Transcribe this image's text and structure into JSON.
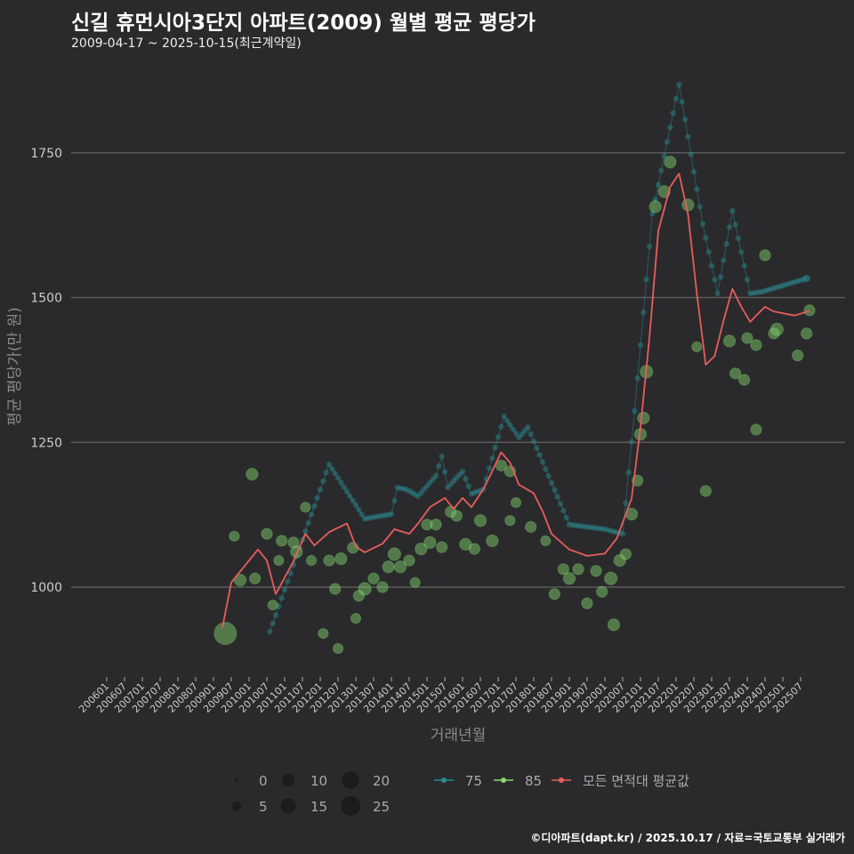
{
  "title": "신길 휴먼시아3단지 아파트(2009) 월별 평균 평당가",
  "subtitle": "2009-04-17 ~ 2025-10-15(최근계약일)",
  "footer": "©디아파트(dapt.kr) / 2025.10.17 / 자료=국토교통부 실거래가",
  "colors": {
    "s75": "#2a8a90",
    "s85": "#86d86e",
    "avg": "#e85d5d",
    "grid": "#5a5a5a",
    "bg": "#2a2a2c"
  },
  "chart_data": {
    "type": "scatter",
    "title": "신길 휴먼시아3단지 아파트(2009) 월별 평균 평당가",
    "xlabel": "거래년월",
    "ylabel": "평균 평당가(만 원)",
    "ylim": [
      840,
      1900
    ],
    "yticks": [
      1000,
      1250,
      1500,
      1750
    ],
    "xticks": [
      "200601",
      "200607",
      "200701",
      "200707",
      "200801",
      "200807",
      "200901",
      "200907",
      "201001",
      "201007",
      "201101",
      "201107",
      "201201",
      "201207",
      "201301",
      "201307",
      "201401",
      "201407",
      "201501",
      "201507",
      "201601",
      "201607",
      "201701",
      "201707",
      "201801",
      "201807",
      "201901",
      "201907",
      "202001",
      "202007",
      "202101",
      "202107",
      "202201",
      "202207",
      "202301",
      "202307",
      "202401",
      "202407",
      "202501",
      "202507"
    ],
    "grid": "horizontal",
    "legend": {
      "size_title": "",
      "sizes": [
        0,
        5,
        10,
        15,
        20,
        25
      ],
      "series": [
        "75",
        "85",
        "모든 면적대 평균값"
      ],
      "placement": "bottom"
    },
    "series": [
      {
        "name": "75",
        "type": "line+points",
        "points": [
          [
            "2010-08",
            923
          ],
          [
            "2012-04",
            1212
          ],
          [
            "2013-04",
            1118
          ],
          [
            "2014-01",
            1126
          ],
          [
            "2014-03",
            1172
          ],
          [
            "2014-06",
            1169
          ],
          [
            "2014-10",
            1157
          ],
          [
            "2015-04",
            1192
          ],
          [
            "2015-06",
            1226
          ],
          [
            "2015-08",
            1172
          ],
          [
            "2016-01",
            1200
          ],
          [
            "2016-04",
            1161
          ],
          [
            "2016-08",
            1169
          ],
          [
            "2017-03",
            1295
          ],
          [
            "2017-08",
            1258
          ],
          [
            "2017-11",
            1276
          ],
          [
            "2019-01",
            1108
          ],
          [
            "2020-01",
            1100
          ],
          [
            "2020-07",
            1092
          ],
          [
            "2020-11",
            1304
          ],
          [
            "2021-05",
            1645
          ],
          [
            "2022-02",
            1868
          ],
          [
            "2022-10",
            1627
          ],
          [
            "2023-03",
            1507
          ],
          [
            "2023-08",
            1650
          ],
          [
            "2024-02",
            1507
          ],
          [
            "2024-06",
            1510
          ],
          [
            "2025-09",
            1533
          ]
        ]
      },
      {
        "name": "85",
        "type": "bubble",
        "points": [
          [
            "2009-05",
            920,
            25
          ],
          [
            "2009-08",
            1088,
            3
          ],
          [
            "2009-10",
            1012,
            5
          ],
          [
            "2010-02",
            1195,
            5
          ],
          [
            "2010-03",
            1015,
            4
          ],
          [
            "2010-07",
            1092,
            4
          ],
          [
            "2010-09",
            969,
            3
          ],
          [
            "2010-11",
            1046,
            3
          ],
          [
            "2010-12",
            1080,
            4
          ],
          [
            "2011-04",
            1077,
            4
          ],
          [
            "2011-05",
            1061,
            5
          ],
          [
            "2011-08",
            1138,
            3
          ],
          [
            "2011-10",
            1046,
            3
          ],
          [
            "2012-02",
            920,
            3
          ],
          [
            "2012-04",
            1046,
            4
          ],
          [
            "2012-06",
            997,
            4
          ],
          [
            "2012-07",
            894,
            3
          ],
          [
            "2012-08",
            1049,
            5
          ],
          [
            "2012-12",
            1068,
            4
          ],
          [
            "2013-01",
            946,
            3
          ],
          [
            "2013-02",
            985,
            4
          ],
          [
            "2013-04",
            997,
            6
          ],
          [
            "2013-07",
            1015,
            4
          ],
          [
            "2013-10",
            1000,
            4
          ],
          [
            "2013-12",
            1035,
            5
          ],
          [
            "2014-02",
            1057,
            6
          ],
          [
            "2014-04",
            1035,
            5
          ],
          [
            "2014-07",
            1046,
            4
          ],
          [
            "2014-09",
            1008,
            3
          ],
          [
            "2014-11",
            1066,
            5
          ],
          [
            "2015-01",
            1108,
            4
          ],
          [
            "2015-02",
            1077,
            5
          ],
          [
            "2015-04",
            1108,
            4
          ],
          [
            "2015-06",
            1069,
            4
          ],
          [
            "2015-09",
            1130,
            4
          ],
          [
            "2015-11",
            1123,
            4
          ],
          [
            "2016-02",
            1074,
            5
          ],
          [
            "2016-05",
            1066,
            4
          ],
          [
            "2016-07",
            1115,
            5
          ],
          [
            "2016-11",
            1080,
            5
          ],
          [
            "2017-02",
            1210,
            4
          ],
          [
            "2017-05",
            1200,
            4
          ],
          [
            "2017-05",
            1115,
            3
          ],
          [
            "2017-07",
            1146,
            3
          ],
          [
            "2017-12",
            1104,
            4
          ],
          [
            "2018-05",
            1080,
            3
          ],
          [
            "2018-08",
            988,
            4
          ],
          [
            "2018-11",
            1031,
            4
          ],
          [
            "2019-01",
            1015,
            5
          ],
          [
            "2019-04",
            1031,
            4
          ],
          [
            "2019-07",
            972,
            4
          ],
          [
            "2019-10",
            1028,
            4
          ],
          [
            "2019-12",
            992,
            4
          ],
          [
            "2020-03",
            1015,
            6
          ],
          [
            "2020-04",
            935,
            5
          ],
          [
            "2020-06",
            1046,
            5
          ],
          [
            "2020-08",
            1057,
            4
          ],
          [
            "2020-10",
            1126,
            5
          ],
          [
            "2020-12",
            1184,
            4
          ],
          [
            "2021-01",
            1264,
            5
          ],
          [
            "2021-02",
            1292,
            5
          ],
          [
            "2021-03",
            1372,
            6
          ],
          [
            "2021-06",
            1657,
            5
          ],
          [
            "2021-09",
            1683,
            5
          ],
          [
            "2021-11",
            1734,
            5
          ],
          [
            "2022-05",
            1660,
            5
          ],
          [
            "2022-08",
            1415,
            3
          ],
          [
            "2022-11",
            1166,
            4
          ],
          [
            "2023-07",
            1425,
            5
          ],
          [
            "2023-09",
            1369,
            4
          ],
          [
            "2023-12",
            1358,
            4
          ],
          [
            "2024-01",
            1430,
            4
          ],
          [
            "2024-04",
            1418,
            4
          ],
          [
            "2024-04",
            1272,
            4
          ],
          [
            "2024-07",
            1573,
            4
          ],
          [
            "2024-10",
            1438,
            4
          ],
          [
            "2024-11",
            1445,
            6
          ],
          [
            "2025-06",
            1400,
            4
          ],
          [
            "2025-09",
            1438,
            4
          ],
          [
            "2025-10",
            1478,
            4
          ]
        ]
      },
      {
        "name": "모든 면적대 평균값",
        "type": "line",
        "points": [
          [
            "2009-04",
            930
          ],
          [
            "2009-07",
            1008
          ],
          [
            "2010-04",
            1065
          ],
          [
            "2010-07",
            1046
          ],
          [
            "2010-10",
            988
          ],
          [
            "2011-04",
            1045
          ],
          [
            "2011-08",
            1092
          ],
          [
            "2011-11",
            1072
          ],
          [
            "2012-04",
            1095
          ],
          [
            "2012-10",
            1110
          ],
          [
            "2013-01",
            1070
          ],
          [
            "2013-04",
            1060
          ],
          [
            "2013-10",
            1075
          ],
          [
            "2014-02",
            1100
          ],
          [
            "2014-07",
            1092
          ],
          [
            "2014-10",
            1110
          ],
          [
            "2015-02",
            1138
          ],
          [
            "2015-07",
            1154
          ],
          [
            "2015-10",
            1135
          ],
          [
            "2016-01",
            1154
          ],
          [
            "2016-04",
            1138
          ],
          [
            "2016-08",
            1169
          ],
          [
            "2016-11",
            1200
          ],
          [
            "2017-02",
            1233
          ],
          [
            "2017-05",
            1215
          ],
          [
            "2017-08",
            1177
          ],
          [
            "2018-01",
            1162
          ],
          [
            "2018-04",
            1131
          ],
          [
            "2018-07",
            1092
          ],
          [
            "2019-01",
            1065
          ],
          [
            "2019-07",
            1054
          ],
          [
            "2020-01",
            1058
          ],
          [
            "2020-05",
            1084
          ],
          [
            "2020-10",
            1153
          ],
          [
            "2021-01",
            1276
          ],
          [
            "2021-04",
            1430
          ],
          [
            "2021-07",
            1615
          ],
          [
            "2021-11",
            1691
          ],
          [
            "2022-02",
            1714
          ],
          [
            "2022-05",
            1645
          ],
          [
            "2022-08",
            1507
          ],
          [
            "2022-11",
            1384
          ],
          [
            "2023-02",
            1399
          ],
          [
            "2023-05",
            1460
          ],
          [
            "2023-08",
            1515
          ],
          [
            "2023-11",
            1484
          ],
          [
            "2024-02",
            1458
          ],
          [
            "2024-04",
            1469
          ],
          [
            "2024-07",
            1484
          ],
          [
            "2024-10",
            1476
          ],
          [
            "2025-01",
            1473
          ],
          [
            "2025-05",
            1469
          ],
          [
            "2025-10",
            1477
          ]
        ]
      }
    ]
  }
}
